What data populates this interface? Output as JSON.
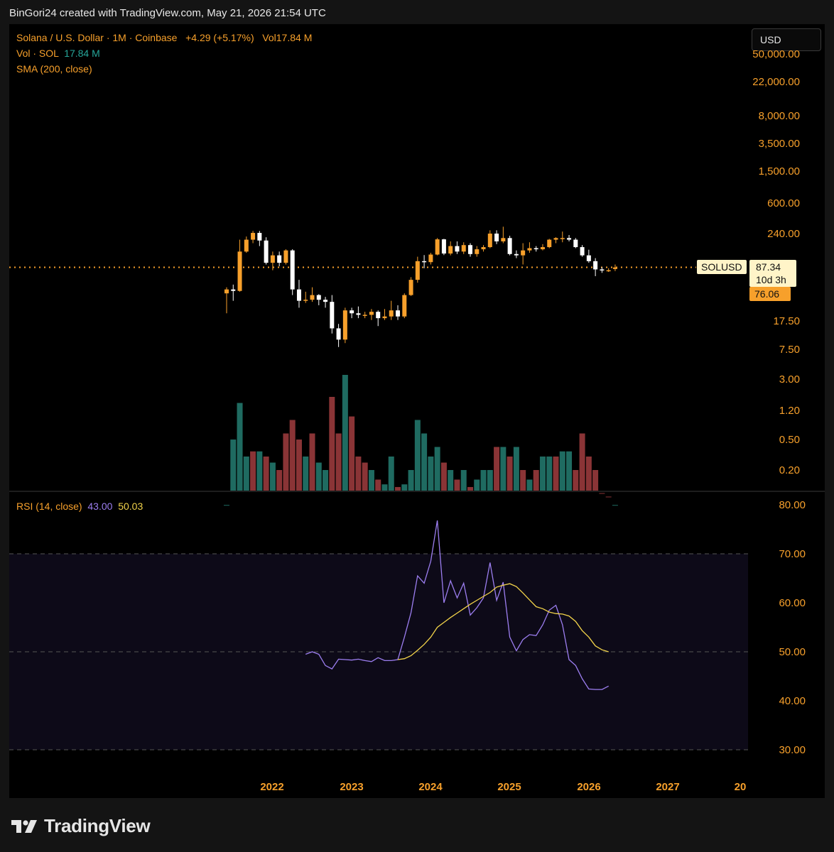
{
  "header": {
    "attribution": "BinGori24 created with TradingView.com, May 21, 2026 21:54 UTC"
  },
  "legend": {
    "main": "Solana / U.S. Dollar · 1M · Coinbase",
    "change": "+4.29 (+5.17%)",
    "vol_prefix": "Vol",
    "vol_value": "17.84 M",
    "vol_label": "Vol · SOL",
    "vol_label_value": "17.84 M",
    "sma": "SMA (200, close)",
    "rsi_label": "RSI (14, close)",
    "rsi_value": "43.00",
    "rsi_ma_value": "50.03"
  },
  "currency_button": "USD",
  "price_axis": [
    "50,000.00",
    "22,000.00",
    "8,000.00",
    "3,500.00",
    "1,500.00",
    "600.00",
    "240.00",
    "17.50",
    "7.50",
    "3.00",
    "1.20",
    "0.50",
    "0.20"
  ],
  "rsi_axis": [
    "80.00",
    "70.00",
    "60.00",
    "50.00",
    "40.00",
    "30.00"
  ],
  "year_axis": [
    "2022",
    "2023",
    "2024",
    "2025",
    "2026",
    "2027",
    "20"
  ],
  "price_badge": {
    "symbol": "SOLUSD",
    "last_price": "87.34",
    "countdown": "10d 3h",
    "prev_price": "76.06"
  },
  "branding": {
    "logo_text": "TradingView"
  },
  "colors": {
    "up": "#f7a02b",
    "down": "#ffffff",
    "vol_up": "#1f6b61",
    "vol_down": "#8a3436",
    "rsi_line": "#9c7ef0",
    "rsi_ma": "#f2d34a"
  },
  "chart_data": {
    "type": "candlestick",
    "interval": "1M",
    "y_scale": "log",
    "start_month": "2021-08",
    "last_price": 87.34,
    "candles": [
      {
        "o": 40,
        "h": 48,
        "l": 22,
        "c": 45
      },
      {
        "o": 45,
        "h": 52,
        "l": 32,
        "c": 43
      },
      {
        "o": 43,
        "h": 200,
        "l": 42,
        "c": 140
      },
      {
        "o": 140,
        "h": 220,
        "l": 135,
        "c": 200
      },
      {
        "o": 200,
        "h": 260,
        "l": 180,
        "c": 245
      },
      {
        "o": 245,
        "h": 260,
        "l": 165,
        "c": 195
      },
      {
        "o": 195,
        "h": 215,
        "l": 95,
        "c": 100
      },
      {
        "o": 100,
        "h": 140,
        "l": 80,
        "c": 125
      },
      {
        "o": 125,
        "h": 140,
        "l": 90,
        "c": 100
      },
      {
        "o": 100,
        "h": 150,
        "l": 95,
        "c": 145
      },
      {
        "o": 145,
        "h": 150,
        "l": 38,
        "c": 45
      },
      {
        "o": 45,
        "h": 60,
        "l": 26,
        "c": 32
      },
      {
        "o": 32,
        "h": 42,
        "l": 30,
        "c": 33
      },
      {
        "o": 33,
        "h": 48,
        "l": 31,
        "c": 38
      },
      {
        "o": 38,
        "h": 39,
        "l": 28,
        "c": 33
      },
      {
        "o": 33,
        "h": 36,
        "l": 26,
        "c": 31
      },
      {
        "o": 31,
        "h": 38,
        "l": 12,
        "c": 14
      },
      {
        "o": 14,
        "h": 16,
        "l": 8,
        "c": 10
      },
      {
        "o": 10,
        "h": 26,
        "l": 9,
        "c": 24
      },
      {
        "o": 24,
        "h": 26,
        "l": 19,
        "c": 22
      },
      {
        "o": 22,
        "h": 27,
        "l": 19,
        "c": 21
      },
      {
        "o": 21,
        "h": 23,
        "l": 19,
        "c": 21
      },
      {
        "o": 21,
        "h": 25,
        "l": 18,
        "c": 23
      },
      {
        "o": 23,
        "h": 24,
        "l": 15,
        "c": 19
      },
      {
        "o": 19,
        "h": 25,
        "l": 18,
        "c": 20
      },
      {
        "o": 20,
        "h": 32,
        "l": 18,
        "c": 24
      },
      {
        "o": 24,
        "h": 28,
        "l": 18,
        "c": 20
      },
      {
        "o": 20,
        "h": 40,
        "l": 19,
        "c": 38
      },
      {
        "o": 38,
        "h": 65,
        "l": 37,
        "c": 60
      },
      {
        "o": 60,
        "h": 120,
        "l": 55,
        "c": 105
      },
      {
        "o": 105,
        "h": 126,
        "l": 85,
        "c": 102
      },
      {
        "o": 102,
        "h": 135,
        "l": 95,
        "c": 128
      },
      {
        "o": 128,
        "h": 210,
        "l": 125,
        "c": 202
      },
      {
        "o": 202,
        "h": 205,
        "l": 126,
        "c": 132
      },
      {
        "o": 132,
        "h": 190,
        "l": 125,
        "c": 165
      },
      {
        "o": 165,
        "h": 190,
        "l": 130,
        "c": 140
      },
      {
        "o": 140,
        "h": 185,
        "l": 130,
        "c": 170
      },
      {
        "o": 170,
        "h": 180,
        "l": 120,
        "c": 130
      },
      {
        "o": 130,
        "h": 165,
        "l": 120,
        "c": 150
      },
      {
        "o": 150,
        "h": 170,
        "l": 140,
        "c": 160
      },
      {
        "o": 160,
        "h": 265,
        "l": 155,
        "c": 240
      },
      {
        "o": 240,
        "h": 265,
        "l": 175,
        "c": 190
      },
      {
        "o": 190,
        "h": 295,
        "l": 180,
        "c": 210
      },
      {
        "o": 210,
        "h": 225,
        "l": 125,
        "c": 130
      },
      {
        "o": 130,
        "h": 145,
        "l": 115,
        "c": 125
      },
      {
        "o": 125,
        "h": 180,
        "l": 95,
        "c": 145
      },
      {
        "o": 145,
        "h": 185,
        "l": 135,
        "c": 155
      },
      {
        "o": 155,
        "h": 165,
        "l": 140,
        "c": 150
      },
      {
        "o": 150,
        "h": 175,
        "l": 145,
        "c": 160
      },
      {
        "o": 160,
        "h": 205,
        "l": 155,
        "c": 200
      },
      {
        "o": 200,
        "h": 215,
        "l": 180,
        "c": 210
      },
      {
        "o": 210,
        "h": 255,
        "l": 185,
        "c": 210
      },
      {
        "o": 210,
        "h": 230,
        "l": 190,
        "c": 200
      },
      {
        "o": 200,
        "h": 210,
        "l": 155,
        "c": 160
      },
      {
        "o": 160,
        "h": 170,
        "l": 120,
        "c": 125
      },
      {
        "o": 125,
        "h": 148,
        "l": 100,
        "c": 105
      },
      {
        "o": 105,
        "h": 115,
        "l": 67,
        "c": 82
      },
      {
        "o": 82,
        "h": 88,
        "l": 74,
        "c": 80
      },
      {
        "o": 80,
        "h": 85,
        "l": 76,
        "c": 80
      },
      {
        "o": 83,
        "h": 95,
        "l": 78,
        "c": 87
      }
    ],
    "volume": [
      0.07,
      0.5,
      1.5,
      0.3,
      0.35,
      0.35,
      0.3,
      0.25,
      0.2,
      0.6,
      0.9,
      0.5,
      0.3,
      0.6,
      0.25,
      0.2,
      1.8,
      0.6,
      8.0,
      1.0,
      0.3,
      0.25,
      0.2,
      0.15,
      0.13,
      0.3,
      0.12,
      0.13,
      0.2,
      0.9,
      0.6,
      0.3,
      0.4,
      0.25,
      0.2,
      0.15,
      0.2,
      0.12,
      0.15,
      0.2,
      0.2,
      0.4,
      0.4,
      0.3,
      0.4,
      0.2,
      0.15,
      0.2,
      0.3,
      0.3,
      0.3,
      0.35,
      0.35,
      0.2,
      0.6,
      0.3,
      0.2,
      0.1,
      0.09,
      0.07
    ],
    "vol_up": [
      true,
      true,
      true,
      true,
      false,
      true,
      false,
      true,
      false,
      false,
      false,
      false,
      true,
      false,
      true,
      true,
      false,
      false,
      true,
      false,
      false,
      false,
      true,
      false,
      true,
      true,
      false,
      true,
      true,
      true,
      true,
      true,
      true,
      false,
      true,
      false,
      true,
      false,
      true,
      true,
      true,
      false,
      true,
      false,
      true,
      false,
      true,
      false,
      true,
      true,
      false,
      true,
      true,
      false,
      false,
      false,
      false,
      false,
      false,
      true
    ],
    "rsi": [
      {
        "m": 12,
        "v": 49.5
      },
      {
        "m": 13,
        "v": 50
      },
      {
        "m": 14,
        "v": 49.5
      },
      {
        "m": 15,
        "v": 47.2
      },
      {
        "m": 16,
        "v": 46.5
      },
      {
        "m": 17,
        "v": 48.5
      },
      {
        "m": 18,
        "v": 48.4
      },
      {
        "m": 19,
        "v": 48.3
      },
      {
        "m": 20,
        "v": 48.5
      },
      {
        "m": 21,
        "v": 48.2
      },
      {
        "m": 22,
        "v": 48
      },
      {
        "m": 23,
        "v": 48.8
      },
      {
        "m": 24,
        "v": 48.2
      },
      {
        "m": 25,
        "v": 48.2
      },
      {
        "m": 26,
        "v": 48.4
      },
      {
        "m": 27,
        "v": 53
      },
      {
        "m": 28,
        "v": 58
      },
      {
        "m": 29,
        "v": 65.5
      },
      {
        "m": 30,
        "v": 64
      },
      {
        "m": 31,
        "v": 68.5
      },
      {
        "m": 32,
        "v": 76.8
      },
      {
        "m": 33,
        "v": 60
      },
      {
        "m": 34,
        "v": 64.5
      },
      {
        "m": 35,
        "v": 61
      },
      {
        "m": 36,
        "v": 64
      },
      {
        "m": 37,
        "v": 57.5
      },
      {
        "m": 38,
        "v": 59
      },
      {
        "m": 39,
        "v": 61
      },
      {
        "m": 40,
        "v": 68.2
      },
      {
        "m": 41,
        "v": 60.5
      },
      {
        "m": 42,
        "v": 64.2
      },
      {
        "m": 43,
        "v": 53
      },
      {
        "m": 44,
        "v": 50.2
      },
      {
        "m": 45,
        "v": 52.5
      },
      {
        "m": 46,
        "v": 53.5
      },
      {
        "m": 47,
        "v": 53.3
      },
      {
        "m": 48,
        "v": 55.5
      },
      {
        "m": 49,
        "v": 58.5
      },
      {
        "m": 50,
        "v": 59.5
      },
      {
        "m": 51,
        "v": 55.5
      },
      {
        "m": 52,
        "v": 48.4
      },
      {
        "m": 53,
        "v": 47.2
      },
      {
        "m": 54,
        "v": 44.5
      },
      {
        "m": 55,
        "v": 42.4
      },
      {
        "m": 56,
        "v": 42.3
      },
      {
        "m": 57,
        "v": 42.3
      },
      {
        "m": 58,
        "v": 43
      }
    ],
    "rsi_ma": [
      {
        "m": 26,
        "v": 48.4
      },
      {
        "m": 27,
        "v": 48.6
      },
      {
        "m": 28,
        "v": 49.2
      },
      {
        "m": 29,
        "v": 50.3
      },
      {
        "m": 30,
        "v": 51.5
      },
      {
        "m": 31,
        "v": 53
      },
      {
        "m": 32,
        "v": 55
      },
      {
        "m": 33,
        "v": 56
      },
      {
        "m": 34,
        "v": 57
      },
      {
        "m": 35,
        "v": 57.9
      },
      {
        "m": 36,
        "v": 58.8
      },
      {
        "m": 37,
        "v": 59.7
      },
      {
        "m": 38,
        "v": 60.5
      },
      {
        "m": 39,
        "v": 61.3
      },
      {
        "m": 40,
        "v": 62.1
      },
      {
        "m": 41,
        "v": 63.2
      },
      {
        "m": 42,
        "v": 63.6
      },
      {
        "m": 43,
        "v": 63.9
      },
      {
        "m": 44,
        "v": 63.3
      },
      {
        "m": 45,
        "v": 62
      },
      {
        "m": 46,
        "v": 60.6
      },
      {
        "m": 47,
        "v": 59.2
      },
      {
        "m": 48,
        "v": 58.8
      },
      {
        "m": 49,
        "v": 58.1
      },
      {
        "m": 50,
        "v": 57.8
      },
      {
        "m": 51,
        "v": 57.7
      },
      {
        "m": 52,
        "v": 57.3
      },
      {
        "m": 53,
        "v": 56.2
      },
      {
        "m": 54,
        "v": 54.3
      },
      {
        "m": 55,
        "v": 53
      },
      {
        "m": 56,
        "v": 51.2
      },
      {
        "m": 57,
        "v": 50.4
      },
      {
        "m": 58,
        "v": 50
      }
    ],
    "rsi_levels": {
      "upper": 70,
      "middle": 50,
      "lower": 30
    },
    "rsi_ylim": [
      30,
      80
    ]
  }
}
